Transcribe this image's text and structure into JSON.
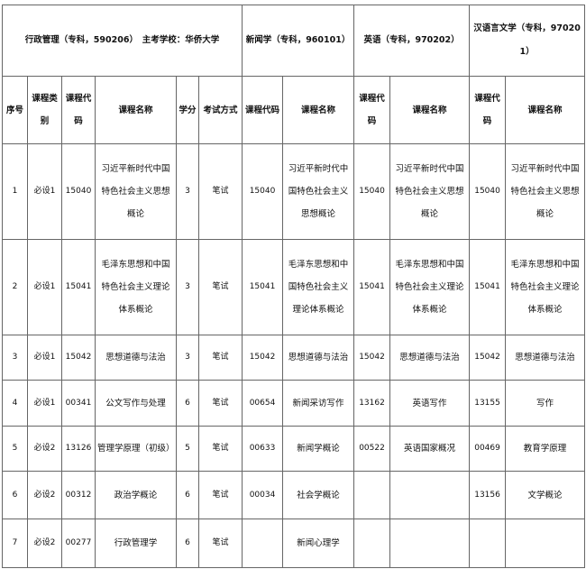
{
  "majors": [
    {
      "title": "行政管理（专科，590206）　主考学校：华侨大学"
    },
    {
      "title": "新闻学（专科，960101）"
    },
    {
      "title": "英语（专科，970202）"
    },
    {
      "title": "汉语言文学（专科，970201）"
    }
  ],
  "columns": [
    "序号",
    "课程类别",
    "课程代码",
    "课程名称",
    "学分",
    "考试方式",
    "课程代码",
    "课程名称",
    "课程代码",
    "课程名称",
    "课程代码",
    "课程名称"
  ],
  "rows": [
    [
      "1",
      "必设1",
      "15040",
      "习近平新时代中国特色社会主义思想概论",
      "3",
      "笔试",
      "15040",
      "习近平新时代中国特色社会主义思想概论",
      "15040",
      "习近平新时代中国特色社会主义思想概论",
      "15040",
      "习近平新时代中国特色社会主义思想概论"
    ],
    [
      "2",
      "必设1",
      "15041",
      "毛泽东思想和中国特色社会主义理论体系概论",
      "3",
      "笔试",
      "15041",
      "毛泽东思想和中国特色社会主义理论体系概论",
      "15041",
      "毛泽东思想和中国特色社会主义理论体系概论",
      "15041",
      "毛泽东思想和中国特色社会主义理论体系概论"
    ],
    [
      "3",
      "必设1",
      "15042",
      "思想道德与法治",
      "3",
      "笔试",
      "15042",
      "思想道德与法治",
      "15042",
      "思想道德与法治",
      "15042",
      "思想道德与法治"
    ],
    [
      "4",
      "必设1",
      "00341",
      "公文写作与处理",
      "6",
      "笔试",
      "00654",
      "新闻采访写作",
      "13162",
      "英语写作",
      "13155",
      "写作"
    ],
    [
      "5",
      "必设2",
      "13126",
      "管理学原理（初级）",
      "5",
      "笔试",
      "00633",
      "新闻学概论",
      "00522",
      "英语国家概况",
      "00469",
      "教育学原理"
    ],
    [
      "6",
      "必设2",
      "00312",
      "政治学概论",
      "6",
      "笔试",
      "00034",
      "社会学概论",
      "",
      "",
      "13156",
      "文学概论"
    ],
    [
      "7",
      "必设2",
      "00277",
      "行政管理学",
      "6",
      "笔试",
      "",
      "新闻心理学",
      "",
      "",
      "",
      ""
    ]
  ]
}
